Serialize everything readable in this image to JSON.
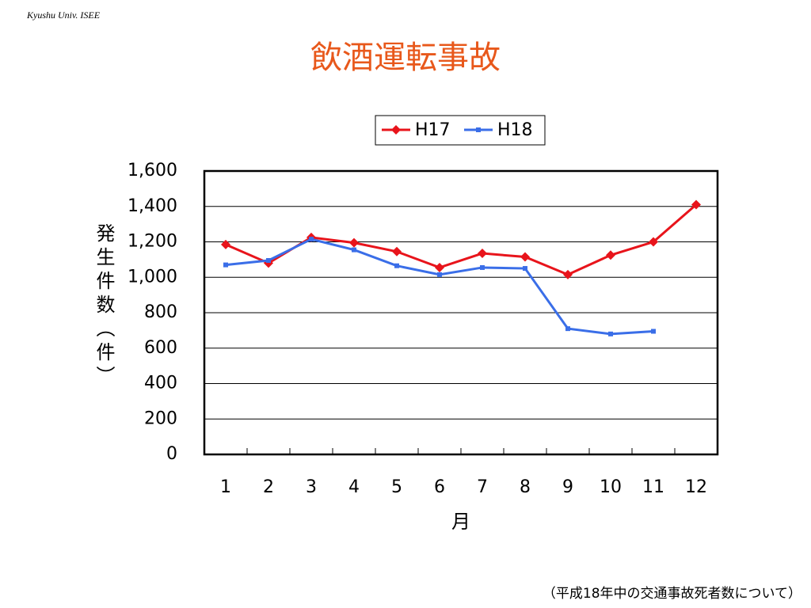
{
  "header": "Kyushu Univ. ISEE",
  "footnote": "（平成18年中の交通事故死者数について）",
  "chart_data": {
    "type": "line",
    "title": "飲酒運転事故",
    "y_label": "発生件数（件）",
    "x_label": "月",
    "categories": [
      "1",
      "2",
      "3",
      "4",
      "5",
      "6",
      "7",
      "8",
      "9",
      "10",
      "11",
      "12"
    ],
    "series": [
      {
        "name": "H17",
        "color": "#e8141b",
        "marker": "diamond",
        "values": [
          1185,
          1080,
          1225,
          1195,
          1145,
          1055,
          1135,
          1115,
          1015,
          1125,
          1200,
          1410
        ]
      },
      {
        "name": "H18",
        "color": "#3a6ee8",
        "marker": "square",
        "values": [
          1070,
          1095,
          1215,
          1155,
          1065,
          1015,
          1055,
          1050,
          710,
          680,
          695,
          null
        ]
      }
    ],
    "ylim": [
      0,
      1600
    ],
    "yticks": [
      0,
      200,
      400,
      600,
      800,
      {
        "value": 1000,
        "label": "1,000"
      },
      {
        "value": 1200,
        "label": "1,200"
      },
      {
        "value": 1400,
        "label": "1,400"
      },
      {
        "value": 1600,
        "label": "1,600"
      }
    ],
    "grid": true,
    "legend": "top"
  }
}
